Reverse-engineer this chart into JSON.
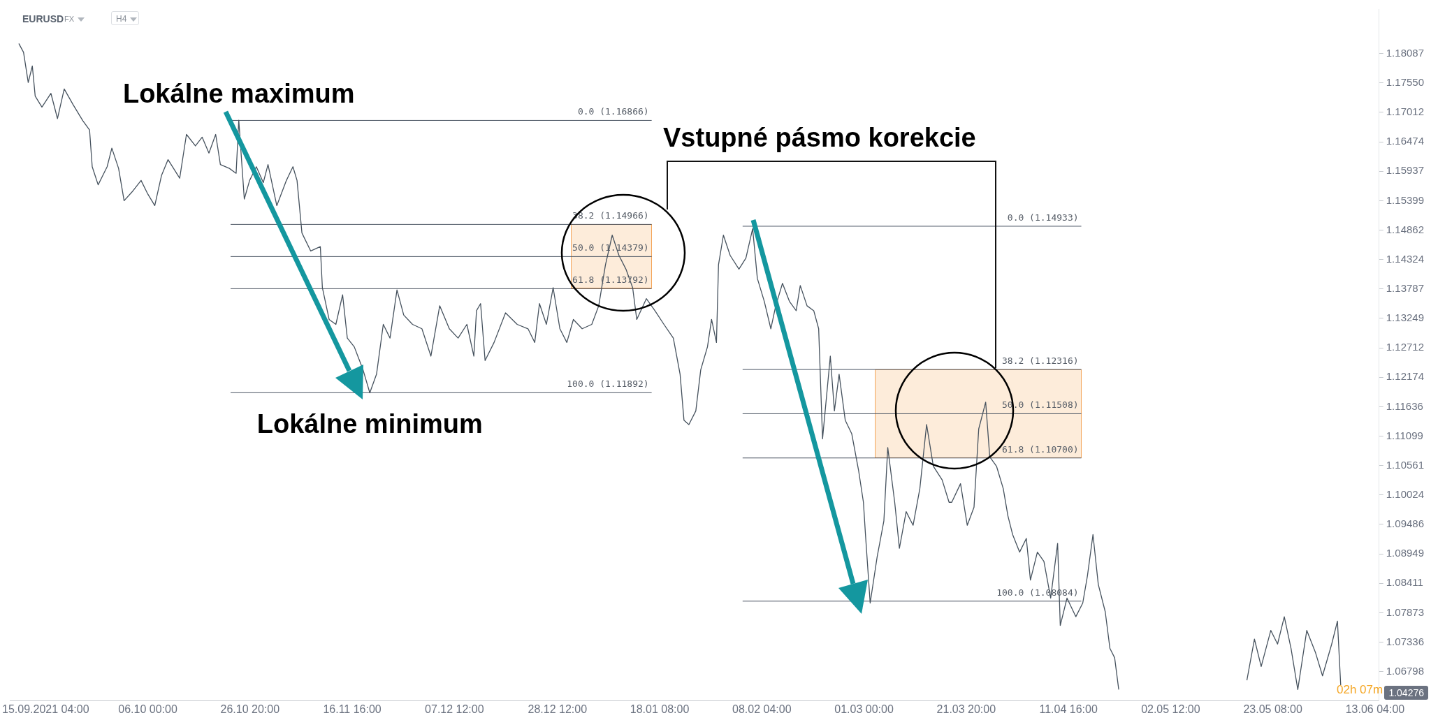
{
  "chart_data": {
    "type": "line",
    "title": "EURUSD",
    "subtitle": "FX",
    "marker": "none",
    "grid": false,
    "legend": false,
    "xlim": [
      "2021-09-08T00:00",
      "2022-06-14T00:00"
    ],
    "xticks": [
      {
        "value": "2021-09-15T04:00",
        "label": "15.09.2021 04:00"
      },
      {
        "value": "2021-10-06T00:00",
        "label": "06.10 00:00"
      },
      {
        "value": "2021-10-26T20:00",
        "label": "26.10 20:00"
      },
      {
        "value": "2021-11-16T16:00",
        "label": "16.11 16:00"
      },
      {
        "value": "2021-12-07T12:00",
        "label": "07.12 12:00"
      },
      {
        "value": "2021-12-28T12:00",
        "label": "28.12 12:00"
      },
      {
        "value": "2022-01-18T08:00",
        "label": "18.01 08:00"
      },
      {
        "value": "2022-02-08T04:00",
        "label": "08.02 04:00"
      },
      {
        "value": "2022-03-01T00:00",
        "label": "01.03 00:00"
      },
      {
        "value": "2022-03-21T20:00",
        "label": "21.03 20:00"
      },
      {
        "value": "2022-04-11T16:00",
        "label": "11.04 16:00"
      },
      {
        "value": "2022-05-02T12:00",
        "label": "02.05 12:00"
      },
      {
        "value": "2022-05-23T08:00",
        "label": "23.05 08:00"
      },
      {
        "value": "2022-06-13T04:00",
        "label": "13.06 04:00"
      }
    ],
    "ylim": [
      1.0626,
      1.189
    ],
    "yticks": [
      1.18087,
      {
        "value": 1.1755,
        "label": "1.17550"
      },
      1.17012,
      1.16474,
      1.15937,
      1.15399,
      1.14862,
      1.14324,
      1.13787,
      1.13249,
      1.12712,
      1.12174,
      1.11636,
      1.11099,
      1.10561,
      1.10024,
      1.09486,
      1.08949,
      1.08411,
      1.07873,
      1.07336,
      1.06798
    ],
    "series": [
      {
        "type": "line",
        "color": "#46525e",
        "x": [
          "2021-09-09T17:00",
          "2021-09-10T16:00",
          "2021-09-11T15:00",
          "2021-09-12T11:00",
          "2021-09-13T01:00",
          "2021-09-14T10:00",
          "2021-09-16T06:00",
          "2021-09-17T14:00",
          "2021-09-18T23:00",
          "2021-09-20T19:00",
          "2021-09-22T18:00",
          "2021-09-24T03:00",
          "2021-09-24T16:00",
          "2021-09-25T21:00",
          "2021-09-27T17:00",
          "2021-09-28T16:00",
          "2021-09-30T01:00",
          "2021-10-01T04:00",
          "2021-10-02T19:00",
          "2021-10-04T15:00",
          "2021-10-06T00:00",
          "2021-10-07T10:00",
          "2021-10-08T19:00",
          "2021-10-10T03:00",
          "2021-10-12T12:00",
          "2021-10-13T21:00",
          "2021-10-15T17:00",
          "2021-10-17T02:00",
          "2021-10-18T11:00",
          "2021-10-19T20:00",
          "2021-10-20T19:00",
          "2021-10-22T15:00",
          "2021-10-24T00:00",
          "2021-10-24T13:00",
          "2021-10-25T16:00",
          "2021-10-26T18:00",
          "2021-10-28T03:00",
          "2021-10-29T13:00",
          "2021-10-30T12:00",
          "2021-11-01T07:00",
          "2021-11-03T06:00",
          "2021-11-04T14:00",
          "2021-11-05T10:00",
          "2021-11-06T10:00",
          "2021-11-08T05:00",
          "2021-11-10T04:00",
          "2021-11-10T14:00",
          "2021-11-11T23:00",
          "2021-11-13T08:00",
          "2021-11-14T17:00",
          "2021-11-15T16:00",
          "2021-11-17T02:00",
          "2021-11-18T21:00",
          "2021-11-20T06:00",
          "2021-11-21T15:00",
          "2021-11-23T00:00",
          "2021-11-24T09:00",
          "2021-11-25T19:00",
          "2021-11-27T04:00",
          "2021-11-28T23:00",
          "2021-11-30T21:00",
          "2021-12-02T17:00",
          "2021-12-04T12:00",
          "2021-12-06T11:00",
          "2021-12-08T06:00",
          "2021-12-10T01:00",
          "2021-12-11T11:00",
          "2021-12-12T00:00",
          "2021-12-12T20:00",
          "2021-12-13T18:00",
          "2021-12-15T14:00",
          "2021-12-17T22:00",
          "2021-12-20T07:00",
          "2021-12-22T12:00",
          "2021-12-23T21:00",
          "2021-12-24T20:00",
          "2021-12-26T06:00",
          "2021-12-27T15:00",
          "2021-12-29T00:00",
          "2021-12-30T10:00",
          "2021-12-31T18:00",
          "2022-01-02T13:00",
          "2022-01-04T12:00",
          "2022-01-05T22:00",
          "2022-01-07T07:00",
          "2022-01-08T16:00",
          "2022-01-10T01:00",
          "2022-01-11T11:00",
          "2022-01-12T20:00",
          "2022-01-13T16:00",
          "2022-01-15T15:00",
          "2022-01-17T09:00",
          "2022-01-19T05:00",
          "2022-01-21T03:00",
          "2022-01-22T12:00",
          "2022-01-23T07:00",
          "2022-01-24T07:00",
          "2022-01-25T17:00",
          "2022-01-26T17:00",
          "2022-01-28T02:00",
          "2022-01-28T22:00",
          "2022-01-29T22:00",
          "2022-01-30T08:00",
          "2022-01-31T08:00",
          "2022-02-01T17:00",
          "2022-02-03T12:00",
          "2022-02-04T22:00",
          "2022-02-06T07:00",
          "2022-02-07T06:00",
          "2022-02-08T16:00",
          "2022-02-10T00:00",
          "2022-02-11T00:00",
          "2022-02-12T09:00",
          "2022-02-13T19:00",
          "2022-02-15T04:00",
          "2022-02-16T00:00",
          "2022-02-17T09:00",
          "2022-02-18T18:00",
          "2022-02-19T18:00",
          "2022-02-20T13:00",
          "2022-02-22T03:00",
          "2022-02-22T23:00",
          "2022-02-23T22:00",
          "2022-02-25T04:00",
          "2022-02-26T12:00",
          "2022-02-27T21:00",
          "2022-02-28T21:00",
          "2022-03-01T07:00",
          "2022-03-02T06:00",
          "2022-03-03T16:00",
          "2022-03-05T01:00",
          "2022-03-05T20:00",
          "2022-03-07T06:00",
          "2022-03-08T05:00",
          "2022-03-09T14:00",
          "2022-03-11T00:00",
          "2022-03-12T09:00",
          "2022-03-13T18:00",
          "2022-03-15T03:00",
          "2022-03-16T22:00",
          "2022-03-18T08:00",
          "2022-03-18T21:00",
          "2022-03-20T16:00",
          "2022-03-22T01:00",
          "2022-03-23T10:00",
          "2022-03-24T09:00",
          "2022-03-25T19:00",
          "2022-03-26T15:00",
          "2022-03-28T00:00",
          "2022-03-29T09:00",
          "2022-03-30T08:00",
          "2022-03-31T07:00",
          "2022-04-01T17:00",
          "2022-04-03T02:00",
          "2022-04-03T22:00",
          "2022-04-05T08:00",
          "2022-04-06T16:00",
          "2022-04-08T01:00",
          "2022-04-09T11:00",
          "2022-04-10T00:00",
          "2022-04-11T09:00",
          "2022-04-13T04:00",
          "2022-04-14T14:00",
          "2022-04-15T13:00",
          "2022-04-16T16:00",
          "2022-04-17T18:00",
          "2022-04-19T04:00",
          "2022-04-20T03:00",
          "2022-04-21T02:00",
          "2022-04-21T22:00",
          "2022-05-01T00:00",
          "2022-05-18T01:00",
          "2022-05-19T14:00",
          "2022-05-20T23:00",
          "2022-05-22T22:00",
          "2022-05-24T07:00",
          "2022-05-25T16:00",
          "2022-05-27T01:00",
          "2022-05-28T10:00",
          "2022-05-30T06:00",
          "2022-06-01T01:00",
          "2022-06-02T11:00",
          "2022-06-04T08:00",
          "2022-06-05T12:00",
          "2022-06-06T04:00"
        ],
        "values": [
          1.1827,
          1.1811,
          1.1756,
          1.1786,
          1.1731,
          1.1711,
          1.1736,
          1.169,
          1.1744,
          1.1715,
          1.1686,
          1.1669,
          1.1602,
          1.1569,
          1.1602,
          1.1636,
          1.1599,
          1.154,
          1.1556,
          1.1577,
          1.1552,
          1.1531,
          1.1586,
          1.1615,
          1.1581,
          1.1661,
          1.164,
          1.1656,
          1.1627,
          1.1661,
          1.1606,
          1.1599,
          1.159,
          1.1687,
          1.1543,
          1.1577,
          1.1602,
          1.1573,
          1.1606,
          1.1531,
          1.1577,
          1.1602,
          1.1577,
          1.1481,
          1.1448,
          1.1456,
          1.1381,
          1.1323,
          1.1314,
          1.1368,
          1.1289,
          1.1273,
          1.1231,
          1.1189,
          1.1223,
          1.1314,
          1.1289,
          1.1377,
          1.1331,
          1.1314,
          1.1306,
          1.1256,
          1.1348,
          1.1306,
          1.1289,
          1.1314,
          1.1256,
          1.1339,
          1.1352,
          1.1248,
          1.1281,
          1.1335,
          1.1314,
          1.1306,
          1.1281,
          1.1352,
          1.1314,
          1.1381,
          1.1306,
          1.1281,
          1.1323,
          1.1306,
          1.1314,
          1.1348,
          1.1423,
          1.1477,
          1.144,
          1.1415,
          1.1381,
          1.1323,
          1.1361,
          1.1339,
          1.1314,
          1.1289,
          1.1223,
          1.1139,
          1.1131,
          1.1156,
          1.1231,
          1.1273,
          1.1323,
          1.1281,
          1.1423,
          1.1477,
          1.144,
          1.1415,
          1.1435,
          1.1489,
          1.1398,
          1.1356,
          1.1306,
          1.1348,
          1.1389,
          1.1356,
          1.1339,
          1.1385,
          1.1348,
          1.1339,
          1.1306,
          1.1105,
          1.1256,
          1.1156,
          1.1223,
          1.1139,
          1.1114,
          1.1048,
          1.0989,
          1.093,
          1.0805,
          1.0889,
          1.0955,
          1.1089,
          1.0989,
          1.0905,
          1.0972,
          1.0947,
          1.1014,
          1.1131,
          1.1055,
          1.103,
          1.0989,
          1.0989,
          1.1023,
          1.0947,
          1.098,
          1.1123,
          1.1172,
          1.1072,
          1.1055,
          1.1014,
          1.0964,
          1.093,
          1.0898,
          1.0923,
          1.0847,
          1.0898,
          1.0881,
          1.0814,
          1.0914,
          1.0764,
          1.0814,
          1.078,
          1.0805,
          1.0855,
          1.093,
          1.0839,
          1.0789,
          1.0722,
          1.0705,
          1.0647,
          null,
          1.0664,
          1.0739,
          1.0689,
          1.0755,
          1.073,
          1.078,
          1.0722,
          1.0647,
          1.0755,
          1.0714,
          1.0672,
          1.073,
          1.0772,
          1.0655
        ]
      },
      {
        "type": "line",
        "name": "0.0 (1.16866)",
        "color": "#4b5563",
        "x": [
          "2021-10-22T21:00",
          "2022-01-16T17:00"
        ],
        "values": [
          1.16866,
          1.16866
        ]
      },
      {
        "type": "line",
        "name": "38.2 (1.14966)",
        "color": "#4b5563",
        "x": [
          "2021-10-22T21:00",
          "2022-01-16T17:00"
        ],
        "values": [
          1.14966,
          1.14966
        ]
      },
      {
        "type": "line",
        "name": "50.0 (1.14379)",
        "color": "#4b5563",
        "x": [
          "2021-10-22T21:00",
          "2022-01-16T17:00"
        ],
        "values": [
          1.14379,
          1.14379
        ]
      },
      {
        "type": "line",
        "name": "61.8 (1.13792)",
        "color": "#4b5563",
        "x": [
          "2021-10-22T21:00",
          "2022-01-16T17:00"
        ],
        "values": [
          1.13792,
          1.13792
        ]
      },
      {
        "type": "line",
        "name": "100.0 (1.11892)",
        "color": "#4b5563",
        "x": [
          "2021-10-22T21:00",
          "2022-01-16T17:00"
        ],
        "values": [
          1.11892,
          1.11892
        ]
      },
      {
        "type": "line",
        "name": "0.0 (1.14933)",
        "color": "#4b5563",
        "x": [
          "2022-02-04T06:00",
          "2022-04-14T07:00"
        ],
        "values": [
          1.14933,
          1.14933
        ]
      },
      {
        "type": "line",
        "name": "38.2 (1.12316)",
        "color": "#4b5563",
        "x": [
          "2022-02-04T06:00",
          "2022-04-14T07:00"
        ],
        "values": [
          1.12316,
          1.12316
        ]
      },
      {
        "type": "line",
        "name": "50.0 (1.11508)",
        "color": "#4b5563",
        "x": [
          "2022-02-04T06:00",
          "2022-04-14T07:00"
        ],
        "values": [
          1.11508,
          1.11508
        ]
      },
      {
        "type": "line",
        "name": "61.8 (1.10700)",
        "color": "#4b5563",
        "x": [
          "2022-02-04T06:00",
          "2022-04-14T07:00"
        ],
        "values": [
          1.107,
          1.107
        ]
      },
      {
        "type": "line",
        "name": "100.0 (1.08084)",
        "color": "#4b5563",
        "x": [
          "2022-02-04T06:00",
          "2022-04-14T07:00"
        ],
        "values": [
          1.08084,
          1.08084
        ]
      }
    ],
    "annotations": [
      "H4",
      {
        "text": "Lokálne maximum",
        "x": "2021-10-24T13:00",
        "y": 1.16866
      },
      {
        "text": "Lokálne minimum",
        "x": "2021-11-20T06:00",
        "y": 1.11892
      },
      "Vstupné pásmo korekcie",
      "1.04276",
      "02h 07m"
    ]
  }
}
